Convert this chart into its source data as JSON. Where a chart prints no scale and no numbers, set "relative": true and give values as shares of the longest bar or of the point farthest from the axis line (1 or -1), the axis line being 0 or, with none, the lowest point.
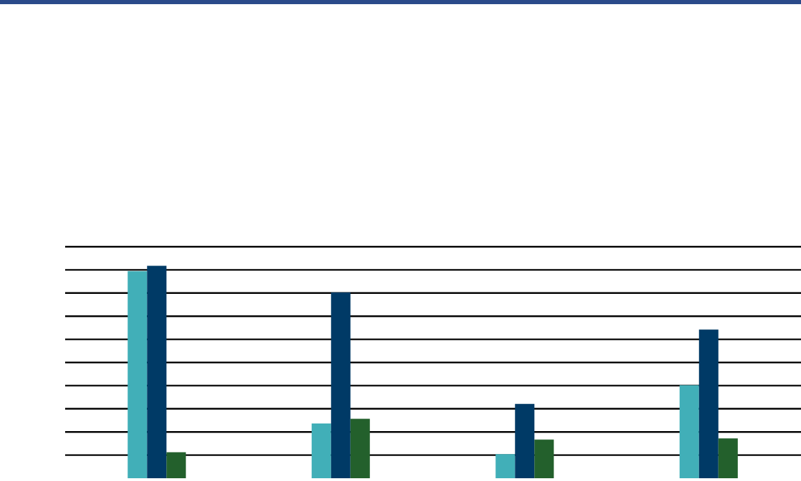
{
  "chart_data": {
    "type": "bar",
    "relative": true,
    "grid": "y",
    "categories": [
      null,
      null,
      null,
      null
    ],
    "series": [
      {
        "color": "#41afb8",
        "values": [
          0.975,
          0.258,
          0.113,
          0.438
        ]
      },
      {
        "color": "#003a66",
        "values": [
          1,
          0.875,
          0.35,
          0.7
        ]
      },
      {
        "color": "#23602c",
        "values": [
          0.122,
          0.28,
          0.182,
          0.188
        ]
      }
    ]
  }
}
